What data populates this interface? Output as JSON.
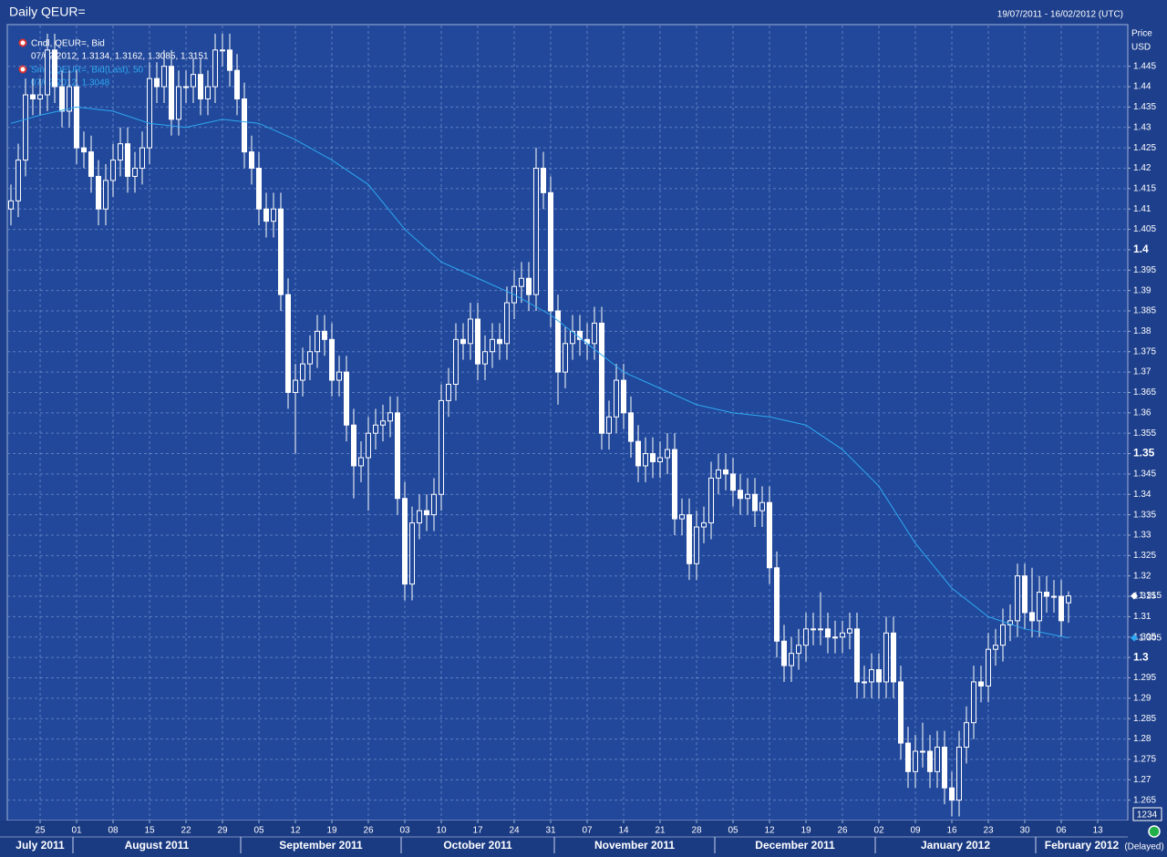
{
  "chart_data": {
    "type": "candlestick",
    "title": "Daily QEUR=",
    "date_range": "19/07/2011 - 16/02/2012 (UTC)",
    "y_axis_label": "Price",
    "y_axis_unit": "USD",
    "grid": true,
    "ylim": [
      1.26,
      1.455
    ],
    "yticks": [
      1.265,
      1.27,
      1.275,
      1.28,
      1.285,
      1.29,
      1.295,
      1.3,
      1.305,
      1.31,
      1.315,
      1.32,
      1.325,
      1.33,
      1.335,
      1.34,
      1.345,
      1.35,
      1.355,
      1.36,
      1.365,
      1.37,
      1.375,
      1.38,
      1.385,
      1.39,
      1.395,
      1.4,
      1.405,
      1.41,
      1.415,
      1.42,
      1.425,
      1.43,
      1.435,
      1.44,
      1.445
    ],
    "xticks": [
      {
        "value": "2011-07-25",
        "label": "25"
      },
      {
        "value": "2011-08-01",
        "label": "01"
      },
      {
        "value": "2011-08-08",
        "label": "08"
      },
      {
        "value": "2011-08-15",
        "label": "15"
      },
      {
        "value": "2011-08-22",
        "label": "22"
      },
      {
        "value": "2011-08-29",
        "label": "29"
      },
      {
        "value": "2011-09-05",
        "label": "05"
      },
      {
        "value": "2011-09-12",
        "label": "12"
      },
      {
        "value": "2011-09-19",
        "label": "19"
      },
      {
        "value": "2011-09-26",
        "label": "26"
      },
      {
        "value": "2011-10-03",
        "label": "03"
      },
      {
        "value": "2011-10-10",
        "label": "10"
      },
      {
        "value": "2011-10-17",
        "label": "17"
      },
      {
        "value": "2011-10-24",
        "label": "24"
      },
      {
        "value": "2011-10-31",
        "label": "31"
      },
      {
        "value": "2011-11-07",
        "label": "07"
      },
      {
        "value": "2011-11-14",
        "label": "14"
      },
      {
        "value": "2011-11-21",
        "label": "21"
      },
      {
        "value": "2011-11-28",
        "label": "28"
      },
      {
        "value": "2011-12-05",
        "label": "05"
      },
      {
        "value": "2011-12-12",
        "label": "12"
      },
      {
        "value": "2011-12-19",
        "label": "19"
      },
      {
        "value": "2011-12-26",
        "label": "26"
      },
      {
        "value": "2012-01-02",
        "label": "02"
      },
      {
        "value": "2012-01-09",
        "label": "09"
      },
      {
        "value": "2012-01-16",
        "label": "16"
      },
      {
        "value": "2012-01-23",
        "label": "23"
      },
      {
        "value": "2012-01-30",
        "label": "30"
      },
      {
        "value": "2012-02-06",
        "label": "06"
      },
      {
        "value": "2012-02-13",
        "label": "13"
      }
    ],
    "months": [
      {
        "value": "2011-07",
        "label": "July 2011"
      },
      {
        "value": "2011-08",
        "label": "August 2011"
      },
      {
        "value": "2011-09",
        "label": "September 2011"
      },
      {
        "value": "2011-10",
        "label": "October 2011"
      },
      {
        "value": "2011-11",
        "label": "November 2011"
      },
      {
        "value": "2011-12",
        "label": "December 2011"
      },
      {
        "value": "2012-01",
        "label": "January 2012"
      },
      {
        "value": "2012-02",
        "label": "February 2012"
      }
    ],
    "candles": {
      "name": "Cndl, QEUR=, Bid",
      "detail": "07/02/2012, 1.3134, 1.3162, 1.3085, 1.3151",
      "color": "#ffffff",
      "x": [
        "2011-07-19",
        "2011-07-20",
        "2011-07-21",
        "2011-07-22",
        "2011-07-25",
        "2011-07-26",
        "2011-07-27",
        "2011-07-28",
        "2011-07-29",
        "2011-08-01",
        "2011-08-02",
        "2011-08-03",
        "2011-08-04",
        "2011-08-05",
        "2011-08-08",
        "2011-08-09",
        "2011-08-10",
        "2011-08-11",
        "2011-08-12",
        "2011-08-15",
        "2011-08-16",
        "2011-08-17",
        "2011-08-18",
        "2011-08-19",
        "2011-08-22",
        "2011-08-23",
        "2011-08-24",
        "2011-08-25",
        "2011-08-26",
        "2011-08-29",
        "2011-08-30",
        "2011-08-31",
        "2011-09-01",
        "2011-09-02",
        "2011-09-05",
        "2011-09-06",
        "2011-09-07",
        "2011-09-08",
        "2011-09-09",
        "2011-09-12",
        "2011-09-13",
        "2011-09-14",
        "2011-09-15",
        "2011-09-16",
        "2011-09-19",
        "2011-09-20",
        "2011-09-21",
        "2011-09-22",
        "2011-09-23",
        "2011-09-26",
        "2011-09-27",
        "2011-09-28",
        "2011-09-29",
        "2011-09-30",
        "2011-10-03",
        "2011-10-04",
        "2011-10-05",
        "2011-10-06",
        "2011-10-07",
        "2011-10-10",
        "2011-10-11",
        "2011-10-12",
        "2011-10-13",
        "2011-10-14",
        "2011-10-17",
        "2011-10-18",
        "2011-10-19",
        "2011-10-20",
        "2011-10-21",
        "2011-10-24",
        "2011-10-25",
        "2011-10-26",
        "2011-10-27",
        "2011-10-28",
        "2011-10-31",
        "2011-11-01",
        "2011-11-02",
        "2011-11-03",
        "2011-11-04",
        "2011-11-07",
        "2011-11-08",
        "2011-11-09",
        "2011-11-10",
        "2011-11-11",
        "2011-11-14",
        "2011-11-15",
        "2011-11-16",
        "2011-11-17",
        "2011-11-18",
        "2011-11-21",
        "2011-11-22",
        "2011-11-23",
        "2011-11-24",
        "2011-11-25",
        "2011-11-28",
        "2011-11-29",
        "2011-11-30",
        "2011-12-01",
        "2011-12-02",
        "2011-12-05",
        "2011-12-06",
        "2011-12-07",
        "2011-12-08",
        "2011-12-09",
        "2011-12-12",
        "2011-12-13",
        "2011-12-14",
        "2011-12-15",
        "2011-12-16",
        "2011-12-19",
        "2011-12-20",
        "2011-12-21",
        "2011-12-22",
        "2011-12-23",
        "2011-12-26",
        "2011-12-27",
        "2011-12-28",
        "2011-12-29",
        "2011-12-30",
        "2012-01-02",
        "2012-01-03",
        "2012-01-04",
        "2012-01-05",
        "2012-01-06",
        "2012-01-09",
        "2012-01-10",
        "2012-01-11",
        "2012-01-12",
        "2012-01-13",
        "2012-01-16",
        "2012-01-17",
        "2012-01-18",
        "2012-01-19",
        "2012-01-20",
        "2012-01-23",
        "2012-01-24",
        "2012-01-25",
        "2012-01-26",
        "2012-01-27",
        "2012-01-30",
        "2012-01-31",
        "2012-02-01",
        "2012-02-02",
        "2012-02-03",
        "2012-02-06",
        "2012-02-07"
      ],
      "open": [
        1.41,
        1.412,
        1.422,
        1.438,
        1.437,
        1.438,
        1.449,
        1.44,
        1.434,
        1.44,
        1.425,
        1.424,
        1.418,
        1.41,
        1.417,
        1.422,
        1.426,
        1.418,
        1.42,
        1.425,
        1.442,
        1.44,
        1.445,
        1.432,
        1.44,
        1.44,
        1.443,
        1.437,
        1.44,
        1.449,
        1.449,
        1.444,
        1.437,
        1.424,
        1.42,
        1.41,
        1.407,
        1.41,
        1.389,
        1.365,
        1.368,
        1.372,
        1.375,
        1.38,
        1.378,
        1.368,
        1.37,
        1.357,
        1.347,
        1.349,
        1.355,
        1.357,
        1.358,
        1.36,
        1.339,
        1.318,
        1.333,
        1.336,
        1.335,
        1.34,
        1.363,
        1.367,
        1.378,
        1.377,
        1.383,
        1.372,
        1.375,
        1.378,
        1.377,
        1.387,
        1.391,
        1.393,
        1.389,
        1.42,
        1.414,
        1.385,
        1.37,
        1.377,
        1.38,
        1.378,
        1.377,
        1.382,
        1.355,
        1.359,
        1.368,
        1.36,
        1.353,
        1.347,
        1.35,
        1.348,
        1.349,
        1.351,
        1.334,
        1.335,
        1.323,
        1.332,
        1.333,
        1.344,
        1.346,
        1.345,
        1.341,
        1.339,
        1.34,
        1.336,
        1.338,
        1.322,
        1.304,
        1.298,
        1.301,
        1.303,
        1.307,
        1.307,
        1.307,
        1.305,
        1.305,
        1.306,
        1.307,
        1.294,
        1.294,
        1.297,
        1.294,
        1.306,
        1.294,
        1.279,
        1.272,
        1.277,
        1.277,
        1.272,
        1.278,
        1.268,
        1.265,
        1.278,
        1.284,
        1.294,
        1.293,
        1.302,
        1.303,
        1.308,
        1.309,
        1.32,
        1.311,
        1.309,
        1.316,
        1.315,
        1.315,
        1.3134
      ],
      "high": [
        1.416,
        1.426,
        1.442,
        1.442,
        1.442,
        1.453,
        1.453,
        1.444,
        1.444,
        1.444,
        1.429,
        1.428,
        1.422,
        1.421,
        1.426,
        1.43,
        1.43,
        1.424,
        1.429,
        1.446,
        1.446,
        1.449,
        1.449,
        1.444,
        1.444,
        1.447,
        1.447,
        1.444,
        1.453,
        1.453,
        1.453,
        1.448,
        1.441,
        1.428,
        1.424,
        1.414,
        1.414,
        1.414,
        1.393,
        1.372,
        1.376,
        1.379,
        1.384,
        1.384,
        1.382,
        1.374,
        1.374,
        1.361,
        1.353,
        1.359,
        1.361,
        1.362,
        1.364,
        1.364,
        1.343,
        1.337,
        1.34,
        1.34,
        1.344,
        1.367,
        1.371,
        1.382,
        1.382,
        1.387,
        1.387,
        1.379,
        1.382,
        1.382,
        1.391,
        1.395,
        1.397,
        1.397,
        1.425,
        1.424,
        1.418,
        1.389,
        1.381,
        1.384,
        1.384,
        1.382,
        1.386,
        1.386,
        1.363,
        1.372,
        1.372,
        1.364,
        1.357,
        1.354,
        1.354,
        1.353,
        1.355,
        1.355,
        1.339,
        1.339,
        1.336,
        1.337,
        1.348,
        1.35,
        1.35,
        1.349,
        1.345,
        1.344,
        1.344,
        1.342,
        1.342,
        1.326,
        1.308,
        1.305,
        1.307,
        1.311,
        1.311,
        1.316,
        1.311,
        1.309,
        1.309,
        1.311,
        1.311,
        1.298,
        1.301,
        1.301,
        1.31,
        1.31,
        1.298,
        1.283,
        1.281,
        1.284,
        1.281,
        1.282,
        1.282,
        1.272,
        1.282,
        1.288,
        1.298,
        1.298,
        1.306,
        1.307,
        1.312,
        1.313,
        1.323,
        1.323,
        1.322,
        1.32,
        1.32,
        1.319,
        1.319,
        1.3162
      ],
      "low": [
        1.406,
        1.408,
        1.418,
        1.433,
        1.433,
        1.434,
        1.436,
        1.43,
        1.43,
        1.421,
        1.42,
        1.414,
        1.406,
        1.406,
        1.413,
        1.418,
        1.414,
        1.414,
        1.416,
        1.421,
        1.436,
        1.436,
        1.428,
        1.428,
        1.436,
        1.436,
        1.433,
        1.433,
        1.436,
        1.445,
        1.44,
        1.433,
        1.42,
        1.416,
        1.406,
        1.403,
        1.403,
        1.385,
        1.361,
        1.35,
        1.364,
        1.368,
        1.371,
        1.374,
        1.364,
        1.364,
        1.353,
        1.339,
        1.343,
        1.336,
        1.351,
        1.353,
        1.354,
        1.335,
        1.314,
        1.314,
        1.329,
        1.331,
        1.331,
        1.336,
        1.359,
        1.363,
        1.373,
        1.373,
        1.368,
        1.368,
        1.371,
        1.373,
        1.373,
        1.383,
        1.387,
        1.385,
        1.385,
        1.41,
        1.381,
        1.362,
        1.366,
        1.373,
        1.374,
        1.373,
        1.373,
        1.351,
        1.351,
        1.355,
        1.356,
        1.349,
        1.343,
        1.343,
        1.344,
        1.344,
        1.345,
        1.33,
        1.33,
        1.319,
        1.319,
        1.328,
        1.329,
        1.34,
        1.341,
        1.337,
        1.335,
        1.335,
        1.332,
        1.332,
        1.318,
        1.3,
        1.294,
        1.294,
        1.297,
        1.299,
        1.303,
        1.303,
        1.301,
        1.301,
        1.301,
        1.302,
        1.29,
        1.29,
        1.29,
        1.29,
        1.29,
        1.29,
        1.275,
        1.268,
        1.268,
        1.273,
        1.268,
        1.268,
        1.264,
        1.261,
        1.261,
        1.274,
        1.28,
        1.289,
        1.289,
        1.298,
        1.299,
        1.304,
        1.305,
        1.307,
        1.305,
        1.305,
        1.311,
        1.311,
        1.305,
        1.3085
      ],
      "close": [
        1.412,
        1.422,
        1.438,
        1.437,
        1.438,
        1.449,
        1.44,
        1.434,
        1.44,
        1.425,
        1.424,
        1.418,
        1.41,
        1.417,
        1.422,
        1.426,
        1.418,
        1.42,
        1.425,
        1.442,
        1.44,
        1.445,
        1.432,
        1.44,
        1.44,
        1.443,
        1.437,
        1.44,
        1.449,
        1.449,
        1.444,
        1.437,
        1.424,
        1.42,
        1.41,
        1.407,
        1.41,
        1.389,
        1.365,
        1.368,
        1.372,
        1.375,
        1.38,
        1.378,
        1.368,
        1.37,
        1.357,
        1.347,
        1.349,
        1.355,
        1.357,
        1.358,
        1.36,
        1.339,
        1.318,
        1.333,
        1.336,
        1.335,
        1.34,
        1.363,
        1.367,
        1.378,
        1.377,
        1.383,
        1.372,
        1.375,
        1.378,
        1.377,
        1.387,
        1.391,
        1.393,
        1.389,
        1.42,
        1.414,
        1.385,
        1.37,
        1.377,
        1.38,
        1.378,
        1.377,
        1.382,
        1.355,
        1.359,
        1.368,
        1.36,
        1.353,
        1.347,
        1.35,
        1.348,
        1.349,
        1.351,
        1.334,
        1.335,
        1.323,
        1.332,
        1.333,
        1.344,
        1.346,
        1.345,
        1.341,
        1.339,
        1.34,
        1.336,
        1.338,
        1.322,
        1.304,
        1.298,
        1.301,
        1.303,
        1.307,
        1.307,
        1.307,
        1.305,
        1.305,
        1.306,
        1.307,
        1.294,
        1.294,
        1.297,
        1.294,
        1.306,
        1.294,
        1.279,
        1.272,
        1.277,
        1.277,
        1.272,
        1.278,
        1.268,
        1.265,
        1.278,
        1.284,
        1.294,
        1.293,
        1.302,
        1.303,
        1.308,
        1.309,
        1.32,
        1.311,
        1.309,
        1.316,
        1.315,
        1.315,
        1.309,
        1.3151
      ]
    },
    "line": {
      "name": "Sma, QEUR=, Bid(Last), 50",
      "detail": "07/02/2012, 1.3048",
      "color": "#2ea8f2",
      "x": [
        "2011-07-19",
        "2011-07-25",
        "2011-08-01",
        "2011-08-08",
        "2011-08-15",
        "2011-08-22",
        "2011-08-29",
        "2011-09-05",
        "2011-09-12",
        "2011-09-19",
        "2011-09-26",
        "2011-10-03",
        "2011-10-10",
        "2011-10-17",
        "2011-10-24",
        "2011-10-31",
        "2011-11-07",
        "2011-11-14",
        "2011-11-21",
        "2011-11-28",
        "2011-12-05",
        "2011-12-12",
        "2011-12-19",
        "2011-12-26",
        "2012-01-02",
        "2012-01-09",
        "2012-01-16",
        "2012-01-23",
        "2012-01-30",
        "2012-02-07"
      ],
      "values": [
        1.431,
        1.433,
        1.435,
        1.434,
        1.431,
        1.43,
        1.432,
        1.431,
        1.427,
        1.422,
        1.416,
        1.405,
        1.397,
        1.393,
        1.389,
        1.384,
        1.377,
        1.37,
        1.366,
        1.362,
        1.36,
        1.359,
        1.357,
        1.351,
        1.342,
        1.328,
        1.317,
        1.31,
        1.307,
        1.3048
      ]
    },
    "last_value_labels": [
      "1.315",
      "1.305"
    ],
    "footer": {
      "counter": "1234",
      "status": "(Delayed)"
    }
  }
}
